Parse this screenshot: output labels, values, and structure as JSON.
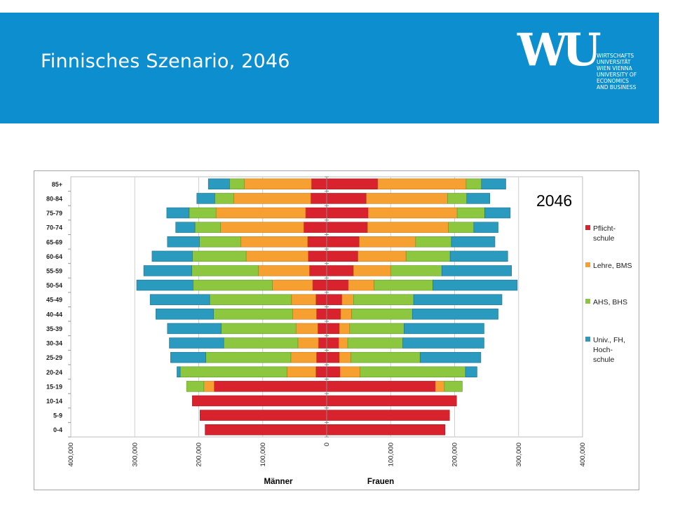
{
  "slide": {
    "title": "Finnisches Szenario, 2046"
  },
  "logo": {
    "mark": "WU",
    "text": "WIRTSCHAFTS\nUNIVERSITÄT\nWIEN VIENNA\nUNIVERSITY OF\nECONOMICS\nAND BUSINESS"
  },
  "colors": {
    "header": "#0d8fcf",
    "pflicht": "#d8232f",
    "lehre": "#f7a032",
    "ahs": "#8dc63f",
    "univ": "#2a9bbf"
  },
  "chart_data": {
    "type": "bar",
    "orientation": "horizontal",
    "stacked": true,
    "chart_subtitle": "2046",
    "categories": [
      "85+",
      "80-84",
      "75-79",
      "70-74",
      "65-69",
      "60-64",
      "55-59",
      "50-54",
      "45-49",
      "40-44",
      "35-39",
      "30-34",
      "25-29",
      "20-24",
      "15-19",
      "10-14",
      "5-9",
      "0-4"
    ],
    "x_ticks": [
      "400,000",
      "300,000",
      "200,000",
      "100,000",
      "0",
      "100,000",
      "200,000",
      "300,000",
      "400,000"
    ],
    "xlim": [
      -400000,
      400000
    ],
    "left_label": "Männer",
    "right_label": "Frauen",
    "grid": true,
    "legend_position": "right",
    "series": [
      {
        "name": "Pflicht-\nschule",
        "men": [
          24000,
          25000,
          33000,
          36000,
          30000,
          29000,
          27000,
          22000,
          17000,
          16000,
          14000,
          13000,
          16000,
          17000,
          176000,
          210000,
          198000,
          190000
        ],
        "women": [
          80000,
          62000,
          65000,
          64000,
          51000,
          49000,
          42000,
          34000,
          24000,
          22000,
          20000,
          19000,
          20000,
          21000,
          170000,
          203000,
          192000,
          185000
        ]
      },
      {
        "name": "Lehre, BMS",
        "men": [
          105000,
          120000,
          140000,
          130000,
          104000,
          97000,
          80000,
          63000,
          38000,
          37000,
          34000,
          32000,
          40000,
          45000,
          16000,
          0,
          0,
          0
        ],
        "women": [
          138000,
          127000,
          139000,
          126000,
          88000,
          75000,
          58000,
          40000,
          18000,
          17000,
          16000,
          14000,
          18000,
          31000,
          14000,
          0,
          0,
          0
        ]
      },
      {
        "name": "AHS, BHS",
        "men": [
          23000,
          30000,
          42000,
          40000,
          65000,
          84000,
          104000,
          124000,
          128000,
          124000,
          117000,
          116000,
          133000,
          167000,
          27000,
          0,
          0,
          0
        ],
        "women": [
          24000,
          30000,
          43000,
          40000,
          56000,
          69000,
          80000,
          92000,
          94000,
          95000,
          85000,
          86000,
          108000,
          165000,
          28000,
          0,
          0,
          0
        ]
      },
      {
        "name": "Univ., FH,\nHoch-\nschule",
        "men": [
          33000,
          28000,
          35000,
          30000,
          50000,
          63000,
          75000,
          88000,
          93000,
          90000,
          84000,
          85000,
          55000,
          5000,
          0,
          0,
          0,
          0
        ],
        "women": [
          38000,
          36000,
          40000,
          38000,
          68000,
          90000,
          109000,
          132000,
          138000,
          134000,
          125000,
          127000,
          95000,
          18000,
          0,
          0,
          0,
          0
        ]
      }
    ]
  }
}
